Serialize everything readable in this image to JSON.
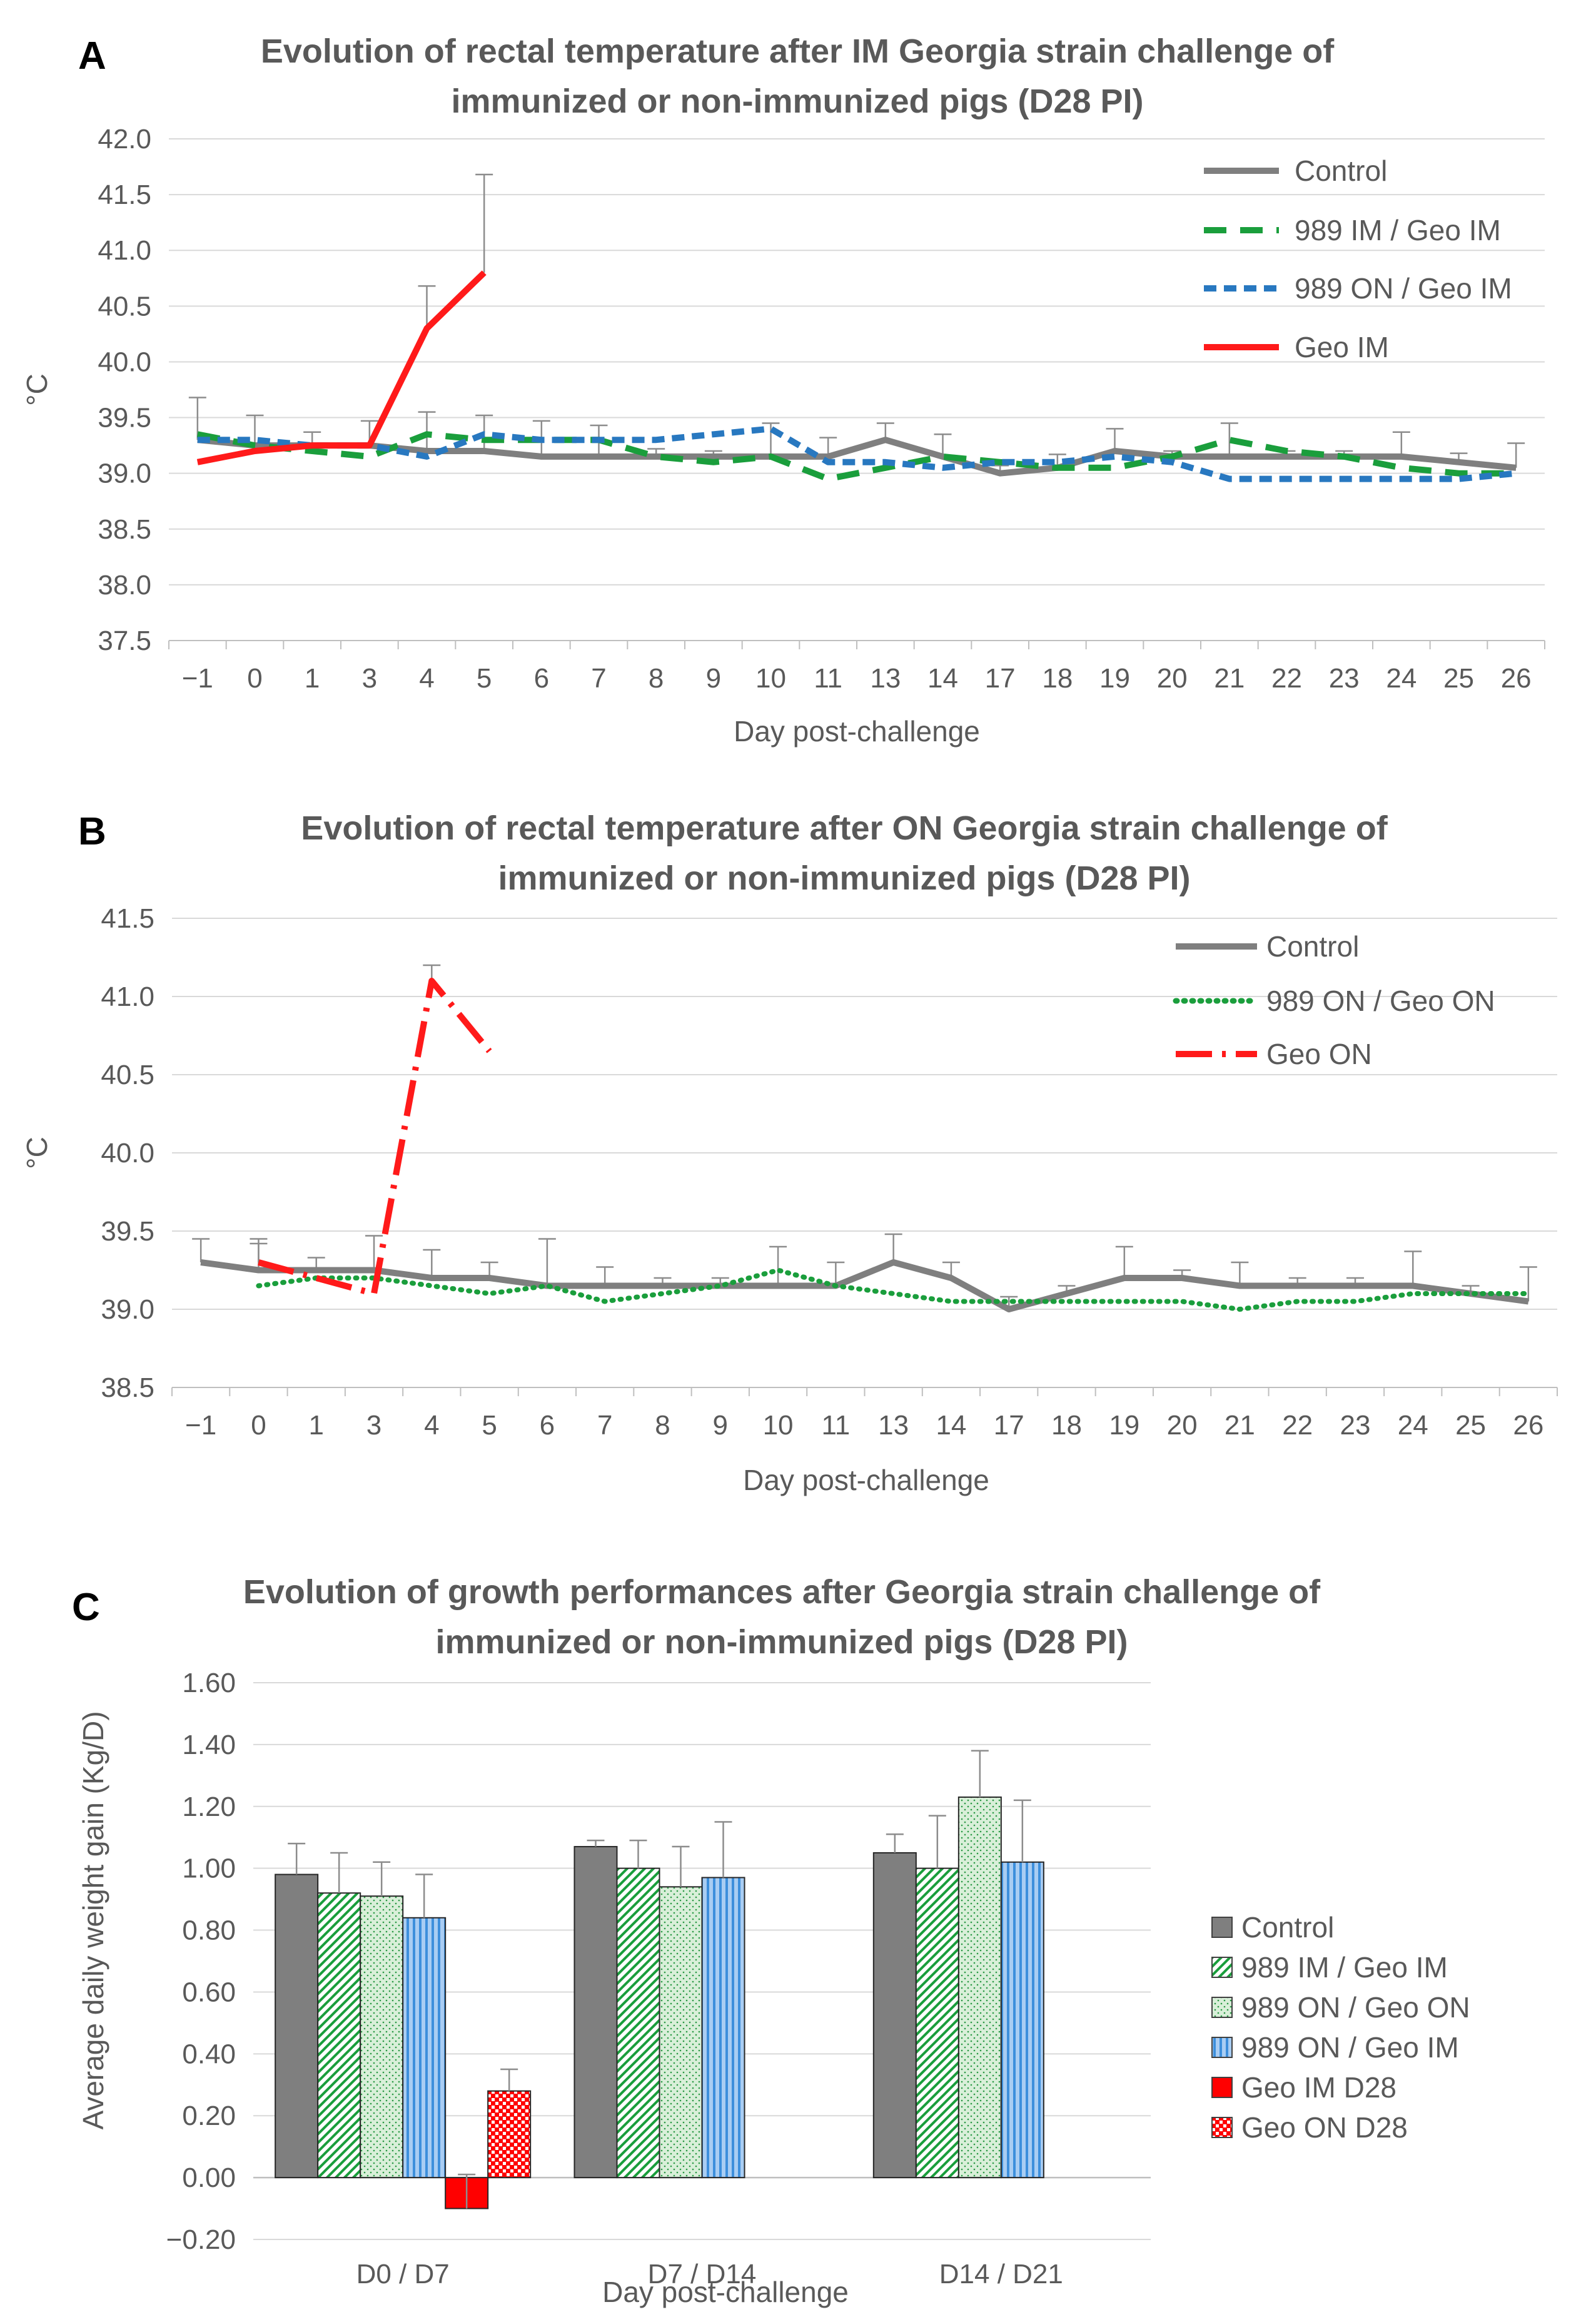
{
  "chart_data": [
    {
      "panel": "A",
      "type": "line",
      "title_lines": [
        "Evolution of rectal temperature after IM Georgia strain challenge of",
        "immunized or non-immunized pigs (D28 PI)"
      ],
      "xlabel": "Day post-challenge",
      "ylabel": "°C",
      "categories": [
        "−1",
        "0",
        "1",
        "3",
        "4",
        "5",
        "6",
        "7",
        "8",
        "9",
        "10",
        "11",
        "13",
        "14",
        "17",
        "18",
        "19",
        "20",
        "21",
        "22",
        "23",
        "24",
        "25",
        "26"
      ],
      "yticks": [
        "42.0",
        "41.5",
        "41.0",
        "40.5",
        "40.0",
        "39.5",
        "39.0",
        "38.5",
        "38.0",
        "37.5"
      ],
      "ylim": [
        37.5,
        42.0
      ],
      "grid": true,
      "legend_position": "top-right",
      "series": [
        {
          "name": "Control",
          "color": "#7f7f7f",
          "dash": "solid",
          "values": [
            39.3,
            39.25,
            39.25,
            39.25,
            39.2,
            39.2,
            39.15,
            39.15,
            39.15,
            39.15,
            39.15,
            39.15,
            39.3,
            39.15,
            39.0,
            39.05,
            39.2,
            39.15,
            39.15,
            39.15,
            39.15,
            39.15,
            39.1,
            39.05
          ],
          "errors": [
            0.38,
            0.27,
            0.12,
            0.22,
            0.35,
            0.32,
            0.32,
            0.28,
            0.07,
            0.05,
            0.3,
            0.17,
            0.15,
            0.2,
            0.07,
            0.12,
            0.2,
            0.05,
            0.3,
            0.05,
            0.05,
            0.22,
            0.08,
            0.22
          ]
        },
        {
          "name": "989 IM / Geo IM",
          "color": "#1a9e3c",
          "dash": "longdash",
          "values": [
            39.35,
            39.25,
            39.2,
            39.15,
            39.35,
            39.3,
            39.3,
            39.3,
            39.15,
            39.1,
            39.15,
            38.95,
            39.05,
            39.15,
            39.1,
            39.05,
            39.05,
            39.15,
            39.3,
            39.2,
            39.15,
            39.05,
            39.0,
            39.0
          ],
          "errors": []
        },
        {
          "name": "989 ON / Geo IM",
          "color": "#2878c0",
          "dash": "shortdash",
          "values": [
            39.3,
            39.3,
            39.25,
            39.25,
            39.15,
            39.35,
            39.3,
            39.3,
            39.3,
            39.35,
            39.4,
            39.1,
            39.1,
            39.05,
            39.1,
            39.1,
            39.15,
            39.1,
            38.95,
            38.95,
            38.95,
            38.95,
            38.95,
            39.0
          ],
          "errors": []
        },
        {
          "name": "Geo IM",
          "color": "#ff1a1a",
          "dash": "solid",
          "values": [
            39.1,
            39.2,
            39.25,
            39.25,
            40.3,
            40.8,
            null,
            null,
            null,
            null,
            null,
            null,
            null,
            null,
            null,
            null,
            null,
            null,
            null,
            null,
            null,
            null,
            null,
            null
          ],
          "errors": [
            0,
            0,
            0,
            0,
            0.38,
            0.88
          ]
        }
      ]
    },
    {
      "panel": "B",
      "type": "line",
      "title_lines": [
        "Evolution of rectal temperature after ON Georgia strain challenge of",
        "immunized or non-immunized pigs (D28 PI)"
      ],
      "xlabel": "Day post-challenge",
      "ylabel": "°C",
      "categories": [
        "−1",
        "0",
        "1",
        "3",
        "4",
        "5",
        "6",
        "7",
        "8",
        "9",
        "10",
        "11",
        "13",
        "14",
        "17",
        "18",
        "19",
        "20",
        "21",
        "22",
        "23",
        "24",
        "25",
        "26"
      ],
      "yticks": [
        "41.5",
        "41.0",
        "40.5",
        "40.0",
        "39.5",
        "39.0",
        "38.5"
      ],
      "ylim": [
        38.5,
        41.5
      ],
      "grid": true,
      "legend_position": "top-right",
      "series": [
        {
          "name": "Control",
          "color": "#7f7f7f",
          "dash": "solid",
          "values": [
            39.3,
            39.25,
            39.25,
            39.25,
            39.2,
            39.2,
            39.15,
            39.15,
            39.15,
            39.15,
            39.15,
            39.15,
            39.3,
            39.2,
            39.0,
            39.1,
            39.2,
            39.2,
            39.15,
            39.15,
            39.15,
            39.15,
            39.1,
            39.05
          ],
          "errors": [
            0.15,
            0.17,
            0.08,
            0.22,
            0.18,
            0.1,
            0.3,
            0.12,
            0.05,
            0.05,
            0.25,
            0.15,
            0.18,
            0.1,
            0.08,
            0.05,
            0.2,
            0.05,
            0.15,
            0.05,
            0.05,
            0.22,
            0.05,
            0.22
          ]
        },
        {
          "name": "989 ON / Geo ON",
          "color": "#1a9e3c",
          "dash": "dotted",
          "values": [
            null,
            39.15,
            39.2,
            39.2,
            39.15,
            39.1,
            39.15,
            39.05,
            39.1,
            39.15,
            39.25,
            39.15,
            39.1,
            39.05,
            39.05,
            39.05,
            39.05,
            39.05,
            39.0,
            39.05,
            39.05,
            39.1,
            39.1,
            39.1
          ],
          "errors": []
        },
        {
          "name": "Geo ON",
          "color": "#ff1a1a",
          "dash": "dashdot",
          "values": [
            null,
            39.3,
            39.2,
            39.1,
            41.1,
            40.65,
            null,
            null,
            null,
            null,
            null,
            null,
            null,
            null,
            null,
            null,
            null,
            null,
            null,
            null,
            null,
            null,
            null,
            null
          ],
          "errors": [
            0,
            0.15,
            0,
            0,
            0.1,
            0
          ]
        }
      ]
    },
    {
      "panel": "C",
      "type": "bar",
      "title_lines": [
        "Evolution of growth performances after Georgia strain challenge of",
        "immunized or non-immunized pigs (D28 PI)"
      ],
      "xlabel": "Day post-challenge",
      "ylabel": "Average daily weight gain (Kg/D)",
      "categories": [
        "D0 / D7",
        "D7 / D14",
        "D14 / D21"
      ],
      "yticks": [
        "1.60",
        "1.40",
        "1.20",
        "1.00",
        "0.80",
        "0.60",
        "0.40",
        "0.20",
        "0.00",
        "−0.20"
      ],
      "ylim": [
        -0.2,
        1.6
      ],
      "grid": true,
      "legend_position": "right",
      "series": [
        {
          "name": "Control",
          "color": "#7f7f7f",
          "pattern": "solid",
          "values": [
            0.98,
            1.07,
            1.05
          ],
          "errors": [
            0.1,
            0.02,
            0.06
          ]
        },
        {
          "name": "989 IM / Geo IM",
          "color": "#1a9e3c",
          "pattern": "diagonal",
          "values": [
            0.92,
            1.0,
            1.0
          ],
          "errors": [
            0.13,
            0.09,
            0.17
          ]
        },
        {
          "name": "989 ON / Geo ON",
          "color": "#c9e7c9",
          "pattern": "dots",
          "values": [
            0.91,
            0.94,
            1.23
          ],
          "errors": [
            0.11,
            0.13,
            0.15
          ]
        },
        {
          "name": "989 ON / Geo IM",
          "color": "#5aa0e0",
          "pattern": "vertical",
          "values": [
            0.84,
            0.97,
            1.02
          ],
          "errors": [
            0.14,
            0.18,
            0.2
          ]
        },
        {
          "name": "Geo IM D28",
          "color": "#ff0000",
          "pattern": "solid",
          "values": [
            -0.1,
            null,
            null
          ],
          "errors": [
            0.11,
            0,
            0
          ]
        },
        {
          "name": "Geo ON D28",
          "color": "#ff0000",
          "pattern": "checker",
          "values": [
            0.28,
            null,
            null
          ],
          "errors": [
            0.07,
            0,
            0
          ]
        }
      ]
    }
  ]
}
